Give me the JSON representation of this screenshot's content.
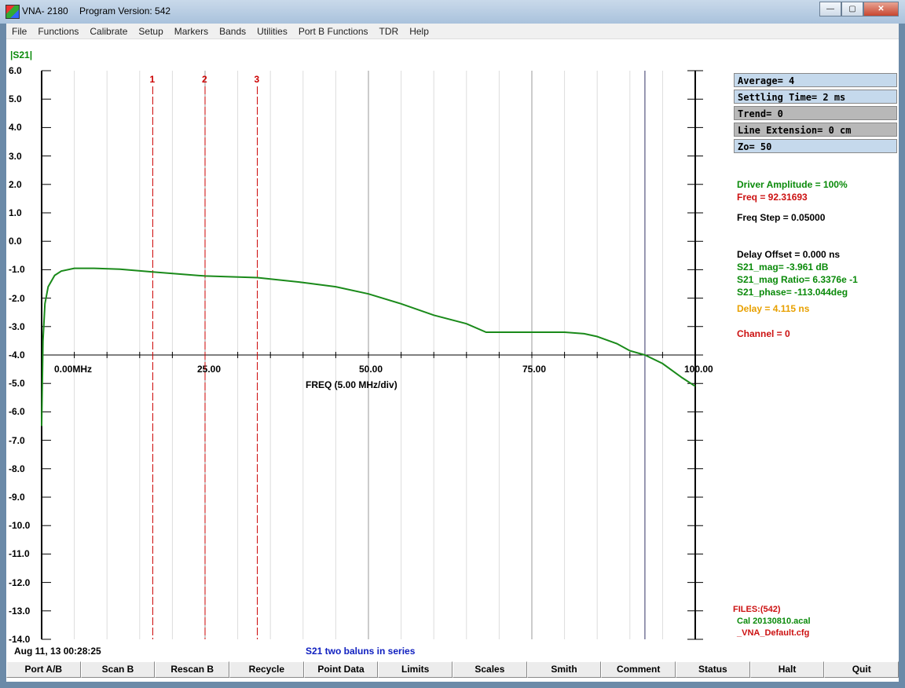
{
  "window": {
    "app_name": "VNA- 2180",
    "program_version": "Program Version: 542",
    "min_glyph": "—",
    "max_glyph": "▢",
    "close_glyph": "✕"
  },
  "menu": [
    "File",
    "Functions",
    "Calibrate",
    "Setup",
    "Markers",
    "Bands",
    "Utilities",
    "Port B Functions",
    "TDR",
    "Help"
  ],
  "trace_label": "|S21|",
  "freq_axis_label": "FREQ (5.00 MHz/div)",
  "markers": [
    "1",
    "2",
    "3"
  ],
  "info_boxes": [
    {
      "text": "Average= 4",
      "bg": "#c5d9ec"
    },
    {
      "text": "Settling Time= 2 ms",
      "bg": "#c5d9ec"
    },
    {
      "text": "Trend= 0",
      "bg": "#b8b8b8"
    },
    {
      "text": "Line Extension= 0 cm",
      "bg": "#b8b8b8"
    },
    {
      "text": "Zo= 50",
      "bg": "#c5d9ec"
    }
  ],
  "readouts": {
    "driver_amplitude": "Driver Amplitude = 100%",
    "freq": "Freq = 92.31693",
    "freq_step": "Freq Step = 0.05000",
    "delay_offset": "Delay Offset =  0.000 ns",
    "s21_mag": "S21_mag= -3.961 dB",
    "s21_mag_ratio": "S21_mag Ratio= 6.3376e -1",
    "s21_phase": "S21_phase= -113.044deg",
    "delay": "Delay =  4.115 ns",
    "channel": "Channel = 0"
  },
  "files": {
    "header": "FILES:(542)",
    "cal": "Cal 20130810.acal",
    "cfg": "_VNA_Default.cfg"
  },
  "timestamp": "Aug 11, 13  00:28:25",
  "comment": "S21 two baluns in series",
  "buttons": [
    "Port A/B",
    "Scan B",
    "Rescan B",
    "Recycle",
    "Point Data",
    "Limits",
    "Scales",
    "Smith",
    "Comment",
    "Status",
    "Halt",
    "Quit"
  ],
  "colors": {
    "trace": "#1a8a1a",
    "marker": "#cc0000",
    "green_text": "#0a8a0a",
    "red_text": "#cc1111",
    "orange_text": "#e8a000",
    "blue_text": "#1020c0"
  },
  "chart_data": {
    "type": "line",
    "xlabel": "FREQ (5.00 MHz/div)",
    "xlim": [
      0,
      100
    ],
    "ylim": [
      -14,
      6
    ],
    "x_tick_labels": [
      "0.00MHz",
      "25.00",
      "50.00",
      "75.00",
      "100.00"
    ],
    "x_ticks": [
      0,
      25,
      50,
      75,
      100
    ],
    "y_ticks": [
      6,
      5,
      4,
      3,
      2,
      1,
      0,
      -1,
      -2,
      -3,
      -4,
      -5,
      -6,
      -7,
      -8,
      -9,
      -10,
      -11,
      -12,
      -13,
      -14
    ],
    "y_tick_labels": [
      "6.0",
      "5.0",
      "4.0",
      "3.0",
      "2.0",
      "1.0",
      "0.0",
      "-1.0",
      "-2.0",
      "-3.0",
      "-4.0",
      "-5.0",
      "-6.0",
      "-7.0",
      "-8.0",
      "-9.0",
      "-10.0",
      "-11.0",
      "-12.0",
      "-13.0",
      "-14.0"
    ],
    "marker_x": [
      17,
      25,
      33
    ],
    "cursor_x": 92.3,
    "series": [
      {
        "x": [
          0,
          0.2,
          0.5,
          1,
          2,
          3,
          5,
          8,
          12,
          17,
          25,
          33,
          40,
          45,
          50,
          55,
          60,
          65,
          68,
          70,
          75,
          80,
          83,
          85,
          88,
          90,
          92.3,
          95,
          98,
          100
        ],
        "y": [
          -6.5,
          -3.5,
          -2.2,
          -1.6,
          -1.2,
          -1.05,
          -0.95,
          -0.95,
          -0.98,
          -1.08,
          -1.22,
          -1.28,
          -1.45,
          -1.6,
          -1.85,
          -2.2,
          -2.6,
          -2.9,
          -3.2,
          -3.2,
          -3.2,
          -3.2,
          -3.25,
          -3.35,
          -3.6,
          -3.85,
          -4.0,
          -4.3,
          -4.8,
          -5.1
        ]
      }
    ]
  }
}
